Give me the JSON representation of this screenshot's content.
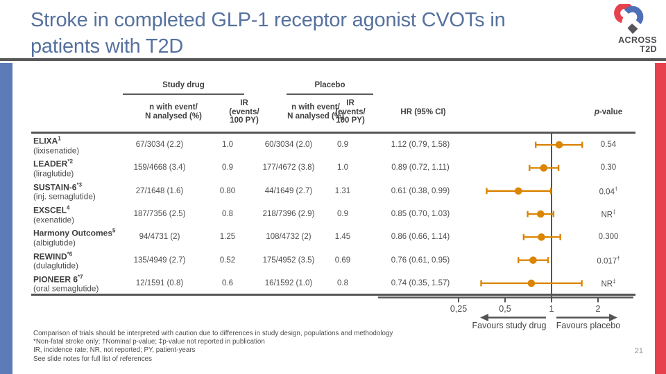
{
  "slide": {
    "title_lines": [
      "Stroke in completed GLP-1 receptor agonist CVOTs in",
      "patients with T2D"
    ],
    "page_number": "21",
    "logo": {
      "text_line1": "ACROSS",
      "text_line2": "T2D"
    }
  },
  "table": {
    "group_headers": {
      "study_drug": "Study drug",
      "placebo": "Placebo"
    },
    "col_headers": {
      "n_lines": [
        "n with event/",
        "N analysed (%)"
      ],
      "ir_lines": [
        "IR",
        "(events/",
        "100 PY)"
      ],
      "hr": "HR (95% CI)",
      "p_italic": "p",
      "p_rest": "-value"
    },
    "rows": [
      {
        "trial": "ELIXA",
        "sup": "1",
        "drug": "(lixisenatide)",
        "study_n": "67/3034 (2.2)",
        "study_ir": "1.0",
        "placebo_n": "60/3034 (2.0)",
        "placebo_ir": "0.9",
        "hr_ci": "1.12 (0.79, 1.58)",
        "p_value": "0.54"
      },
      {
        "trial": "LEADER",
        "sup": "*2",
        "drug": "(liraglutide)",
        "study_n": "159/4668 (3.4)",
        "study_ir": "0.9",
        "placebo_n": "177/4672 (3.8)",
        "placebo_ir": "1.0",
        "hr_ci": "0.89 (0.72, 1.11)",
        "p_value": "0.30"
      },
      {
        "trial": "SUSTAIN-6",
        "sup": "*3",
        "drug": "(inj. semaglutide)",
        "study_n": "27/1648 (1.6)",
        "study_ir": "0.80",
        "placebo_n": "44/1649 (2.7)",
        "placebo_ir": "1.31",
        "hr_ci": "0.61 (0.38, 0.99)",
        "p_value": "0.04†"
      },
      {
        "trial": "EXSCEL",
        "sup": "4",
        "drug": "(exenatide)",
        "study_n": "187/7356 (2.5)",
        "study_ir": "0.8",
        "placebo_n": "218/7396 (2.9)",
        "placebo_ir": "0.9",
        "hr_ci": "0.85 (0.70, 1.03)",
        "p_value": "NR‡"
      },
      {
        "trial": "Harmony Outcomes",
        "sup": "5",
        "drug": "(albiglutide)",
        "study_n": "94/4731 (2)",
        "study_ir": "1.25",
        "placebo_n": "108/4732 (2)",
        "placebo_ir": "1.45",
        "hr_ci": "0.86 (0.66, 1.14)",
        "p_value": "0.300"
      },
      {
        "trial": "REWIND",
        "sup": "*6",
        "drug": "(dulaglutide)",
        "study_n": "135/4949 (2.7)",
        "study_ir": "0.52",
        "placebo_n": "175/4952 (3.5)",
        "placebo_ir": "0.69",
        "hr_ci": "0.76 (0.61, 0.95)",
        "p_value": "0.017†"
      },
      {
        "trial": "PIONEER 6",
        "sup": "*7",
        "drug": "(oral semaglutide)",
        "study_n": "12/1591 (0.8)",
        "study_ir": "0.6",
        "placebo_n": "16/1592 (1.0)",
        "placebo_ir": "0.8",
        "hr_ci": "0.74 (0.35, 1.57)",
        "p_value": "NR‡"
      }
    ]
  },
  "chart_data": {
    "type": "scatter",
    "subtype": "forest-plot",
    "x_scale": "log2",
    "xlim": [
      0.2,
      2.4
    ],
    "x_ticks": [
      {
        "value": 0.25,
        "label": "0,25"
      },
      {
        "value": 0.5,
        "label": "0,5"
      },
      {
        "value": 1,
        "label": "1"
      },
      {
        "value": 2,
        "label": "2"
      }
    ],
    "reference_value": 1,
    "series": [
      {
        "name": "ELIXA",
        "hr": 1.12,
        "ci_low": 0.79,
        "ci_high": 1.58
      },
      {
        "name": "LEADER",
        "hr": 0.89,
        "ci_low": 0.72,
        "ci_high": 1.11
      },
      {
        "name": "SUSTAIN-6",
        "hr": 0.61,
        "ci_low": 0.38,
        "ci_high": 0.99
      },
      {
        "name": "EXSCEL",
        "hr": 0.85,
        "ci_low": 0.7,
        "ci_high": 1.03
      },
      {
        "name": "Harmony Outcomes",
        "hr": 0.86,
        "ci_low": 0.66,
        "ci_high": 1.14
      },
      {
        "name": "REWIND",
        "hr": 0.76,
        "ci_low": 0.61,
        "ci_high": 0.95
      },
      {
        "name": "PIONEER 6",
        "hr": 0.74,
        "ci_low": 0.35,
        "ci_high": 1.57
      }
    ],
    "favours_left_label": "Favours study drug",
    "favours_right_label": "Favours placebo",
    "marker_color": "#DB8503",
    "axis_color": "#555555",
    "tick_label_color": "#454545"
  },
  "footer": {
    "caution": "Comparison of trials should be interpreted with caution due to differences in study design, populations and methodology",
    "footnotes": "*Non-fatal stroke only; †Nominal p-value; ‡p-value not reported in publication",
    "abbreviations": "IR, incidence rate; NR, not reported; PY, patient-years",
    "references": "See slide notes for full list of references"
  },
  "colors": {
    "title": "#55719E",
    "accent_blue_bar": "#5C7BB8",
    "accent_red_bar": "#E8414E",
    "divider": "#595959",
    "logo_red": "#E8414E",
    "logo_blue": "#4D6FB5",
    "logo_gray": "#55565A"
  }
}
